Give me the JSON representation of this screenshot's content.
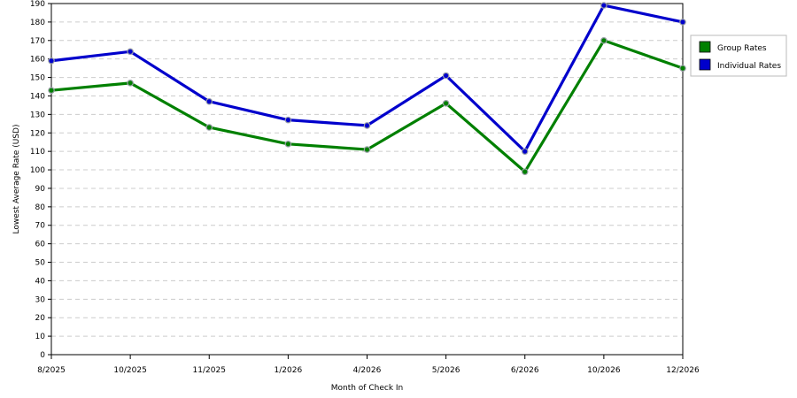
{
  "chart_data": {
    "type": "line",
    "categories": [
      "8/2025",
      "10/2025",
      "11/2025",
      "1/2026",
      "4/2026",
      "5/2026",
      "6/2026",
      "10/2026",
      "12/2026"
    ],
    "series": [
      {
        "name": "Group Rates",
        "color": "#008000",
        "values": [
          143,
          147,
          123,
          114,
          111,
          136,
          99,
          170,
          155
        ]
      },
      {
        "name": "Individual Rates",
        "color": "#0000cc",
        "values": [
          159,
          164,
          137,
          127,
          124,
          151,
          110,
          189,
          180
        ]
      }
    ],
    "xlabel": "Month of Check In",
    "ylabel": "Lowest Average Rate (USD)",
    "ylim": [
      0,
      190
    ],
    "ytick_step": 10,
    "grid": true,
    "legend_position": "top-right"
  }
}
